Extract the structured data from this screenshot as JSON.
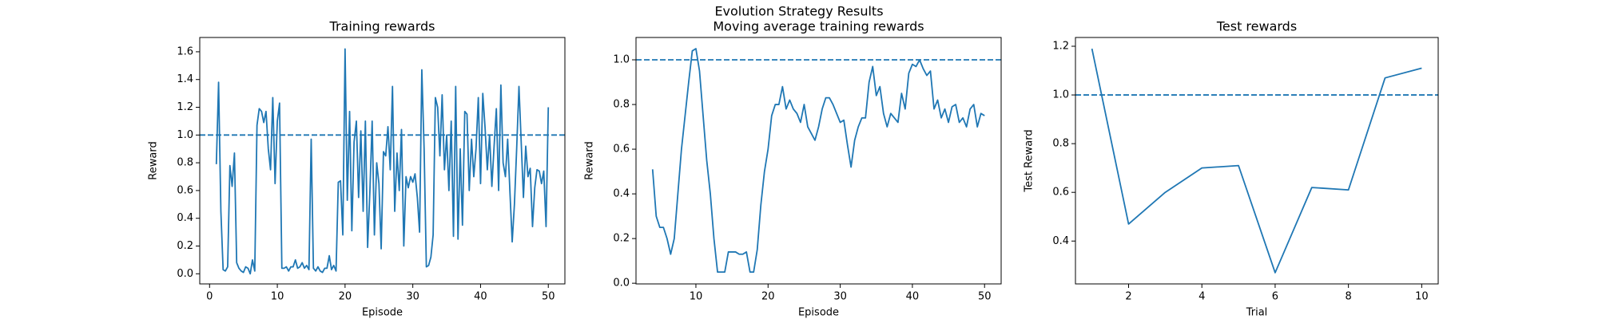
{
  "title": "Evolution Strategy Results",
  "chart_data": [
    {
      "type": "line",
      "title": "Training rewards",
      "xlabel": "Episode",
      "ylabel": "Reward",
      "x": [
        1,
        1.33,
        1.67,
        2,
        2.33,
        2.67,
        3,
        3.33,
        3.67,
        4,
        4.33,
        4.67,
        5,
        5.33,
        5.67,
        6,
        6.33,
        6.67,
        7,
        7.33,
        7.67,
        8,
        8.33,
        8.67,
        9,
        9.33,
        9.67,
        10,
        10.33,
        10.67,
        11,
        11.33,
        11.67,
        12,
        12.33,
        12.67,
        13,
        13.33,
        13.67,
        14,
        14.33,
        14.67,
        15,
        15.33,
        15.67,
        16,
        16.33,
        16.67,
        17,
        17.33,
        17.67,
        18,
        18.33,
        18.67,
        19,
        19.33,
        19.67,
        20,
        20.33,
        20.67,
        21,
        21.33,
        21.67,
        22,
        22.33,
        22.67,
        23,
        23.33,
        23.67,
        24,
        24.33,
        24.67,
        25,
        25.33,
        25.67,
        26,
        26.33,
        26.67,
        27,
        27.33,
        27.67,
        28,
        28.33,
        28.67,
        29,
        29.33,
        29.67,
        30,
        30.33,
        30.67,
        31,
        31.33,
        31.67,
        32,
        32.33,
        32.67,
        33,
        33.33,
        33.67,
        34,
        34.33,
        34.67,
        35,
        35.33,
        35.67,
        36,
        36.33,
        36.67,
        37,
        37.33,
        37.67,
        38,
        38.33,
        38.67,
        39,
        39.33,
        39.67,
        40,
        40.33,
        40.67,
        41,
        41.33,
        41.67,
        42,
        42.33,
        42.67,
        43,
        43.33,
        43.67,
        44,
        44.33,
        44.67,
        45,
        45.33,
        45.67,
        46,
        46.33,
        46.67,
        47,
        47.33,
        47.67,
        48,
        48.33,
        48.67,
        49,
        49.33,
        49.67,
        50
      ],
      "series": [
        {
          "color": "#1f77b4",
          "values": [
            0.79,
            1.38,
            0.45,
            0.03,
            0.02,
            0.05,
            0.78,
            0.63,
            0.87,
            0.08,
            0.04,
            0.02,
            0.01,
            0.05,
            0.04,
            0.0,
            0.1,
            0.02,
            1.07,
            1.19,
            1.17,
            1.09,
            1.17,
            0.9,
            0.75,
            1.27,
            0.65,
            1.1,
            1.23,
            0.04,
            0.04,
            0.05,
            0.02,
            0.05,
            0.05,
            0.1,
            0.04,
            0.05,
            0.08,
            0.04,
            0.06,
            0.03,
            0.97,
            0.04,
            0.02,
            0.05,
            0.02,
            0.01,
            0.04,
            0.04,
            0.13,
            0.03,
            0.06,
            0.02,
            0.66,
            0.67,
            0.28,
            1.62,
            0.53,
            1.17,
            0.31,
            0.95,
            1.1,
            0.55,
            1.03,
            0.45,
            1.1,
            0.19,
            0.6,
            1.1,
            0.28,
            0.8,
            0.65,
            0.18,
            0.88,
            0.85,
            1.06,
            0.75,
            1.35,
            0.45,
            0.87,
            0.6,
            1.04,
            0.2,
            0.7,
            0.62,
            0.7,
            0.66,
            0.72,
            0.55,
            0.3,
            1.47,
            0.9,
            0.05,
            0.06,
            0.12,
            0.28,
            1.27,
            1.2,
            0.85,
            1.29,
            0.75,
            1.0,
            0.6,
            1.1,
            0.27,
            1.35,
            0.25,
            0.9,
            0.35,
            1.17,
            1.15,
            0.6,
            0.97,
            0.7,
            0.9,
            1.27,
            0.65,
            1.3,
            1.05,
            0.75,
            1.0,
            0.63,
            0.92,
            1.19,
            0.6,
            1.36,
            0.8,
            0.7,
            0.97,
            0.6,
            0.23,
            0.5,
            0.9,
            1.35,
            0.95,
            0.55,
            0.92,
            0.7,
            0.76,
            0.34,
            0.62,
            0.75,
            0.74,
            0.65,
            0.74,
            0.34,
            1.2
          ]
        }
      ],
      "hline": 1.0,
      "xlim": [
        -1.45,
        52.45
      ],
      "xticks": [
        0,
        10,
        20,
        30,
        40,
        50
      ],
      "ylim": [
        -0.073,
        1.703
      ],
      "yticks": [
        {
          "value": 0,
          "label": "0.0"
        },
        0.2,
        0.4,
        0.6,
        0.8,
        {
          "value": 1,
          "label": "1.0"
        },
        1.2,
        1.4,
        1.6
      ]
    },
    {
      "type": "line",
      "title": "Moving average training rewards",
      "xlabel": "Episode",
      "ylabel": "Reward",
      "x": [
        4,
        4.5,
        5,
        5.5,
        6,
        6.5,
        7,
        7.5,
        8,
        8.5,
        9,
        9.5,
        10,
        10.5,
        11,
        11.5,
        12,
        12.5,
        13,
        13.5,
        14,
        14.5,
        15,
        15.5,
        16,
        16.5,
        17,
        17.5,
        18,
        18.5,
        19,
        19.5,
        20,
        20.5,
        21,
        21.5,
        22,
        22.5,
        23,
        23.5,
        24,
        24.5,
        25,
        25.5,
        26,
        26.5,
        27,
        27.5,
        28,
        28.5,
        29,
        29.5,
        30,
        30.5,
        31,
        31.5,
        32,
        32.5,
        33,
        33.5,
        34,
        34.5,
        35,
        35.5,
        36,
        36.5,
        37,
        37.5,
        38,
        38.5,
        39,
        39.5,
        40,
        40.5,
        41,
        41.5,
        42,
        42.5,
        43,
        43.5,
        44,
        44.5,
        45,
        45.5,
        46,
        46.5,
        47,
        47.5,
        48,
        48.5,
        49,
        49.5,
        50
      ],
      "series": [
        {
          "color": "#1f77b4",
          "values": [
            0.51,
            0.3,
            0.25,
            0.25,
            0.2,
            0.13,
            0.2,
            0.4,
            0.6,
            0.75,
            0.9,
            1.04,
            1.05,
            0.95,
            0.75,
            0.55,
            0.4,
            0.2,
            0.05,
            0.05,
            0.05,
            0.14,
            0.14,
            0.14,
            0.13,
            0.13,
            0.14,
            0.05,
            0.05,
            0.15,
            0.35,
            0.5,
            0.6,
            0.75,
            0.8,
            0.8,
            0.88,
            0.78,
            0.82,
            0.78,
            0.76,
            0.72,
            0.8,
            0.7,
            0.67,
            0.64,
            0.7,
            0.78,
            0.83,
            0.83,
            0.8,
            0.76,
            0.72,
            0.73,
            0.62,
            0.52,
            0.64,
            0.7,
            0.74,
            0.74,
            0.9,
            0.97,
            0.84,
            0.88,
            0.76,
            0.7,
            0.76,
            0.74,
            0.72,
            0.85,
            0.78,
            0.94,
            0.98,
            0.97,
            1.0,
            0.96,
            0.93,
            0.95,
            0.78,
            0.82,
            0.74,
            0.78,
            0.72,
            0.79,
            0.8,
            0.72,
            0.74,
            0.7,
            0.78,
            0.8,
            0.7,
            0.76,
            0.75
          ]
        }
      ],
      "hline": 1.0,
      "xlim": [
        1.7,
        52.3
      ],
      "xticks": [
        10,
        20,
        30,
        40,
        50
      ],
      "ylim": [
        -0.003,
        1.1
      ],
      "yticks": [
        {
          "value": 0,
          "label": "0.0"
        },
        0.2,
        0.4,
        0.6,
        0.8,
        {
          "value": 1,
          "label": "1.0"
        }
      ]
    },
    {
      "type": "line",
      "title": "Test rewards",
      "xlabel": "Trial",
      "ylabel": "Test Reward",
      "x": [
        1,
        2,
        3,
        4,
        5,
        6,
        7,
        8,
        9,
        10
      ],
      "series": [
        {
          "color": "#1f77b4",
          "values": [
            1.19,
            0.47,
            0.6,
            0.7,
            0.71,
            0.27,
            0.62,
            0.61,
            1.07,
            1.11
          ]
        }
      ],
      "hline": 1.0,
      "xlim": [
        0.55,
        10.45
      ],
      "xticks": [
        2,
        4,
        6,
        8,
        10
      ],
      "ylim": [
        0.224,
        1.236
      ],
      "yticks": [
        0.4,
        0.6,
        0.8,
        {
          "value": 1,
          "label": "1.0"
        },
        1.2
      ]
    }
  ]
}
